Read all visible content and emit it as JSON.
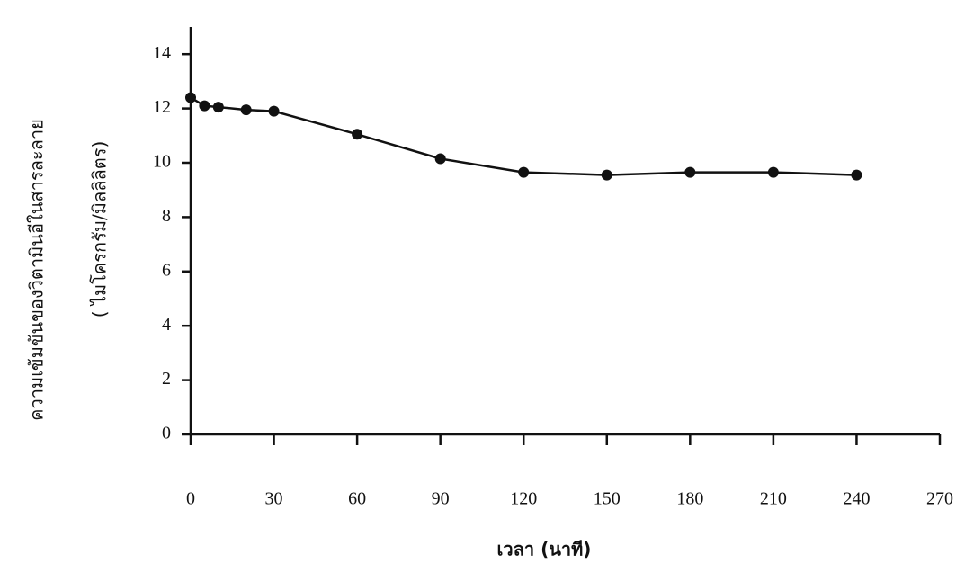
{
  "chart_data": {
    "type": "line",
    "x_label": "เวลา (นาที)",
    "y_label": "ความเข้มข้นของวิตามินอีในสารละลาย",
    "y_label_unit": "( ไมโครกรัม/มิลลิลิตร)",
    "x": [
      0,
      5,
      10,
      20,
      30,
      60,
      90,
      120,
      150,
      180,
      210,
      240
    ],
    "series": [
      {
        "color": "#111111",
        "values": [
          12.4,
          12.1,
          12.05,
          11.95,
          11.9,
          11.05,
          10.15,
          9.65,
          9.55,
          9.65,
          9.65,
          9.55
        ]
      }
    ],
    "xlim": [
      0,
      270
    ],
    "xticks": [
      0,
      30,
      60,
      90,
      120,
      150,
      180,
      210,
      240,
      270
    ],
    "ylim": [
      0,
      15
    ],
    "yticks": [
      0,
      2,
      4,
      6,
      8,
      10,
      12,
      14
    ]
  }
}
